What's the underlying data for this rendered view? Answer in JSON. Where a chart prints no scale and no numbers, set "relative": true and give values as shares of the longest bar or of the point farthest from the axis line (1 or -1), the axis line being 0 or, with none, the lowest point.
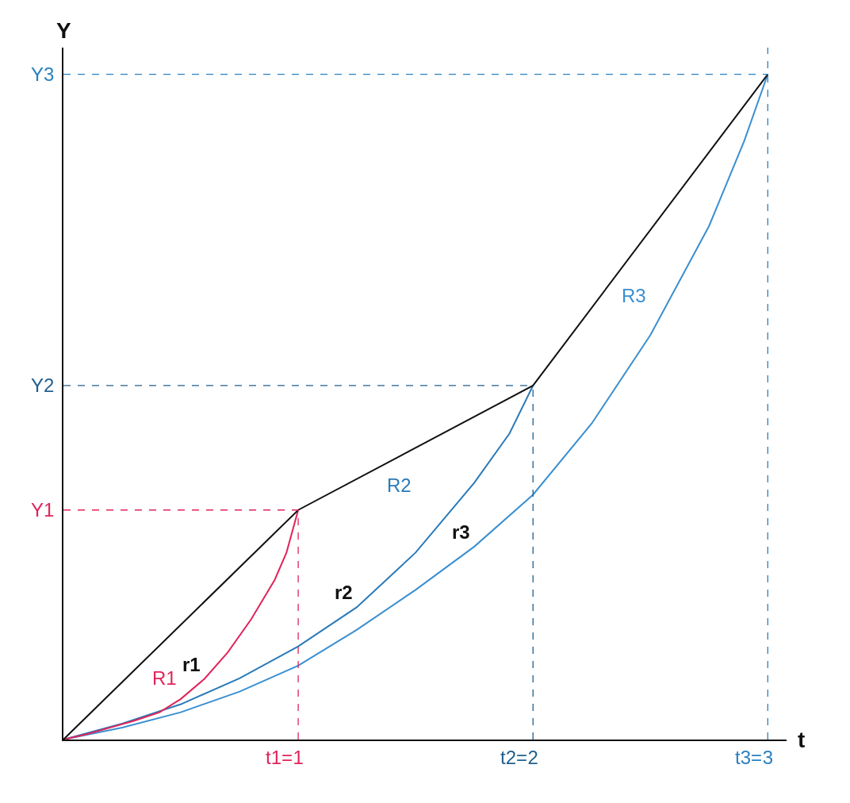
{
  "chart_data": {
    "type": "line",
    "xlabel": "t",
    "ylabel": "Y",
    "relative": true,
    "xlim": [
      0,
      3.08
    ],
    "xticks": [
      1,
      2,
      3
    ],
    "legend": false,
    "marker": "none",
    "series": [
      {
        "color": "#111111",
        "x": [
          0,
          1,
          2,
          3
        ],
        "values": [
          0,
          0.345,
          0.532,
          1
        ]
      },
      {
        "name": "r1",
        "color": "#e0245a",
        "x": [
          0,
          0.1,
          0.2,
          0.3,
          0.41,
          0.5,
          0.6,
          0.7,
          0.8,
          0.9,
          0.95,
          1
        ],
        "values": [
          0,
          0.008,
          0.018,
          0.028,
          0.041,
          0.061,
          0.091,
          0.131,
          0.181,
          0.24,
          0.281,
          0.345
        ]
      },
      {
        "name": "r2",
        "color": "#2a7ab8",
        "x": [
          0,
          0.25,
          0.5,
          0.75,
          1,
          1.25,
          1.5,
          1.75,
          1.9,
          2
        ],
        "values": [
          0,
          0.024,
          0.053,
          0.092,
          0.14,
          0.199,
          0.281,
          0.386,
          0.46,
          0.532
        ]
      },
      {
        "name": "r3",
        "color": "#3a8fd0",
        "x": [
          0,
          0.25,
          0.5,
          0.75,
          1,
          1.25,
          1.5,
          1.75,
          2,
          2.25,
          2.5,
          2.75,
          2.9,
          3
        ],
        "values": [
          0,
          0.018,
          0.041,
          0.072,
          0.111,
          0.165,
          0.225,
          0.29,
          0.368,
          0.475,
          0.608,
          0.772,
          0.9,
          1
        ]
      }
    ],
    "ref_lines": [
      {
        "axis": "x",
        "value": 1,
        "label": "t1=",
        "color": "#e0245a",
        "line_style": "dashed"
      },
      {
        "axis": "x",
        "value": 2,
        "label": "t2=",
        "color": "#1f5f8f",
        "line_style": "dashed"
      },
      {
        "axis": "x",
        "value": 3,
        "label": "t3=",
        "color": "#2a80c0",
        "line_style": "dashed"
      },
      {
        "axis": "y",
        "value": 0.345,
        "label": "Y1",
        "color": "#e0245a",
        "line_style": "dashed"
      },
      {
        "axis": "y",
        "value": 0.532,
        "label": "Y2",
        "color": "#1f5f8f",
        "line_style": "dashed"
      },
      {
        "axis": "y",
        "value": 1,
        "label": "Y3",
        "color": "#2a80c0",
        "line_style": "dashed"
      }
    ],
    "annotations": [
      "R1",
      "R2",
      "R3"
    ]
  }
}
